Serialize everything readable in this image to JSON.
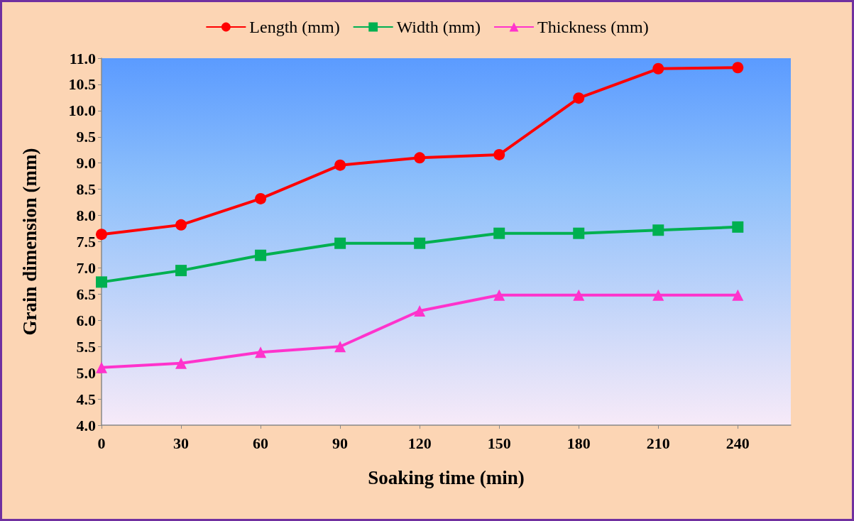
{
  "chart_data": {
    "type": "line",
    "xlabel": "Soaking time (min)",
    "ylabel": "Grain dimension (mm)",
    "x": [
      0,
      30,
      60,
      90,
      120,
      150,
      180,
      210,
      240
    ],
    "xlim": [
      0,
      260
    ],
    "xticks": [
      0,
      30,
      60,
      90,
      120,
      150,
      180,
      210,
      240
    ],
    "ylim": [
      4.0,
      11.0
    ],
    "yticks": [
      {
        "value": 4,
        "label": "4.0"
      },
      {
        "value": 4.5,
        "label": "4.5"
      },
      {
        "value": 5,
        "label": "5.0"
      },
      {
        "value": 5.5,
        "label": "5.5"
      },
      {
        "value": 6,
        "label": "6.0"
      },
      {
        "value": 6.5,
        "label": "6.5"
      },
      {
        "value": 7,
        "label": "7.0"
      },
      {
        "value": 7.5,
        "label": "7.5"
      },
      {
        "value": 8,
        "label": "8.0"
      },
      {
        "value": 8.5,
        "label": "8.5"
      },
      {
        "value": 9,
        "label": "9.0"
      },
      {
        "value": 9.5,
        "label": "9.5"
      },
      {
        "value": 10,
        "label": "10.0"
      },
      {
        "value": 10.5,
        "label": "10.5"
      },
      {
        "value": 11,
        "label": "11.0"
      }
    ],
    "grid": false,
    "legend": "top",
    "line_style": "solid",
    "series": [
      {
        "name": "Length (mm)",
        "color": "#ff0000",
        "marker": "circle",
        "values": [
          7.64,
          7.82,
          8.32,
          8.96,
          9.1,
          9.16,
          10.24,
          10.8,
          10.82
        ]
      },
      {
        "name": "Width (mm)",
        "color": "#00b050",
        "marker": "square",
        "values": [
          6.73,
          6.95,
          7.24,
          7.47,
          7.47,
          7.66,
          7.66,
          7.72,
          7.78
        ]
      },
      {
        "name": "Thickness (mm)",
        "color": "#ff33cc",
        "marker": "triangle",
        "values": [
          5.1,
          5.18,
          5.39,
          5.5,
          6.18,
          6.48,
          6.48,
          6.48,
          6.48
        ]
      }
    ]
  }
}
